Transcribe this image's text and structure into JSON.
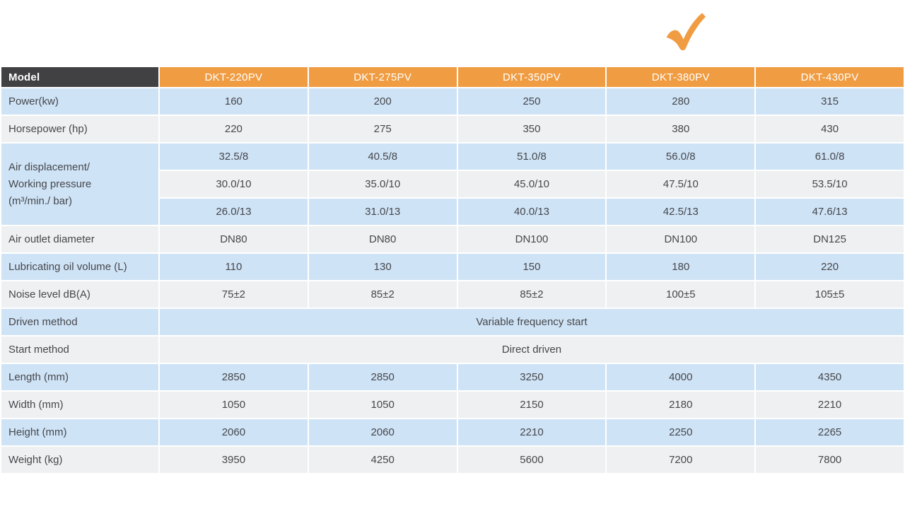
{
  "colors": {
    "accent_orange": "#f09c42",
    "dark_header": "#414144",
    "row_blue": "#cfe3f6",
    "row_gray": "#eef0f1",
    "body_text": "#45474b",
    "header_text": "#ffffff"
  },
  "decorations": {
    "checkmark_icon": "orange-checkmark",
    "checkmark_over_column": "DKT-380PV"
  },
  "table": {
    "model_label": "Model",
    "columns": [
      "DKT-220PV",
      "DKT-275PV",
      "DKT-350PV",
      "DKT-380PV",
      "DKT-430PV"
    ],
    "rows": [
      {
        "label": "Power(kw)",
        "values": [
          "160",
          "200",
          "250",
          "280",
          "315"
        ]
      },
      {
        "label": "Horsepower (hp)",
        "values": [
          "220",
          "275",
          "350",
          "380",
          "430"
        ]
      },
      {
        "label_lines": [
          "Air displacement/",
          "Working pressure",
          "(m³/min./ bar)"
        ],
        "group": [
          [
            "32.5/8",
            "40.5/8",
            "51.0/8",
            "56.0/8",
            "61.0/8"
          ],
          [
            "30.0/10",
            "35.0/10",
            "45.0/10",
            "47.5/10",
            "53.5/10"
          ],
          [
            "26.0/13",
            "31.0/13",
            "40.0/13",
            "42.5/13",
            "47.6/13"
          ]
        ]
      },
      {
        "label": "Air outlet diameter",
        "values": [
          "DN80",
          "DN80",
          "DN100",
          "DN100",
          "DN125"
        ]
      },
      {
        "label": "Lubricating oil volume (L)",
        "values": [
          "110",
          "130",
          "150",
          "180",
          "220"
        ]
      },
      {
        "label": "Noise level dB(A)",
        "values": [
          "75±2",
          "85±2",
          "85±2",
          "100±5",
          "105±5"
        ]
      },
      {
        "label": "Driven method",
        "span_value": "Variable frequency start"
      },
      {
        "label": "Start method",
        "span_value": "Direct driven"
      },
      {
        "label": "Length (mm)",
        "values": [
          "2850",
          "2850",
          "3250",
          "4000",
          "4350"
        ]
      },
      {
        "label": "Width (mm)",
        "values": [
          "1050",
          "1050",
          "2150",
          "2180",
          "2210"
        ]
      },
      {
        "label": "Height (mm)",
        "values": [
          "2060",
          "2060",
          "2210",
          "2250",
          "2265"
        ]
      },
      {
        "label": "Weight (kg)",
        "values": [
          "3950",
          "4250",
          "5600",
          "7200",
          "7800"
        ]
      }
    ]
  }
}
